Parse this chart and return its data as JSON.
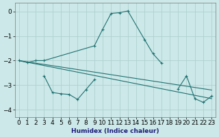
{
  "xlabel": "Humidex (Indice chaleur)",
  "xlim": [
    -0.5,
    23.5
  ],
  "ylim": [
    -4.3,
    0.35
  ],
  "yticks": [
    0,
    -1,
    -2,
    -3,
    -4
  ],
  "bg_color": "#cce8e8",
  "grid_color": "#aacccc",
  "line_color": "#1e7070",
  "line1_x": [
    0,
    1,
    2,
    3,
    9,
    10,
    11,
    12,
    13,
    15,
    16,
    17
  ],
  "line1_y": [
    -2.0,
    -2.08,
    -2.0,
    -2.0,
    -1.4,
    -0.72,
    -0.08,
    -0.05,
    0.02,
    -1.15,
    -1.72,
    -2.1
  ],
  "line2_x": [
    3,
    4,
    5,
    6,
    7,
    8,
    9,
    19,
    20,
    21,
    22,
    23
  ],
  "line2_y": [
    -2.62,
    -3.3,
    -3.35,
    -3.38,
    -3.58,
    -3.18,
    -2.78,
    -3.15,
    -2.62,
    -3.55,
    -3.7,
    -3.45
  ],
  "line3_x": [
    0,
    23
  ],
  "line3_y": [
    -2.0,
    -3.2
  ],
  "line4_x": [
    0,
    23
  ],
  "line4_y": [
    -2.0,
    -3.55
  ]
}
